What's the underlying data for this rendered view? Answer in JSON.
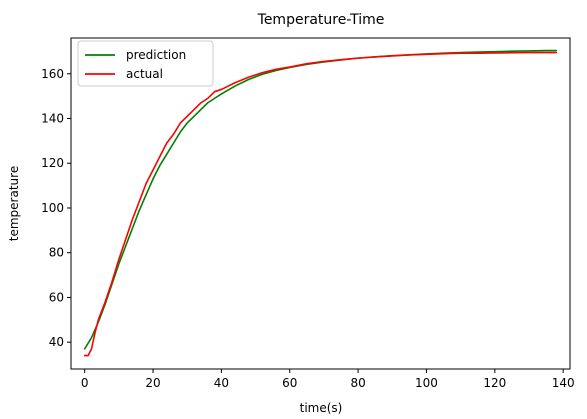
{
  "chart_data": {
    "type": "line",
    "title": "Temperature-Time",
    "xlabel": "time(s)",
    "ylabel": "temperature",
    "xlim": [
      -4,
      142
    ],
    "ylim": [
      28,
      176
    ],
    "xticks": [
      0,
      20,
      40,
      60,
      80,
      100,
      120,
      140
    ],
    "yticks": [
      40,
      60,
      80,
      100,
      120,
      140,
      160
    ],
    "grid": false,
    "legend": "top-left",
    "series": [
      {
        "name": "prediction",
        "color": "#008000",
        "x": [
          0,
          2,
          4,
          6,
          8,
          10,
          12,
          14,
          16,
          18,
          20,
          22,
          24,
          26,
          28,
          30,
          32,
          34,
          36,
          38,
          40,
          44,
          48,
          52,
          56,
          60,
          65,
          70,
          75,
          80,
          85,
          90,
          95,
          100,
          105,
          110,
          115,
          120,
          125,
          130,
          135,
          138
        ],
        "y": [
          37,
          42,
          49,
          57,
          66,
          75,
          83,
          91,
          99,
          106,
          113,
          119,
          124,
          129,
          134,
          138,
          141,
          144,
          147,
          149,
          151,
          154.5,
          157.5,
          159.8,
          161.5,
          162.8,
          164.2,
          165.3,
          166.2,
          167,
          167.6,
          168.1,
          168.5,
          168.9,
          169.2,
          169.5,
          169.7,
          169.9,
          170.1,
          170.2,
          170.4,
          170.4
        ]
      },
      {
        "name": "actual",
        "color": "#ff0000",
        "x": [
          0,
          1,
          2,
          3,
          4,
          6,
          8,
          10,
          12,
          14,
          16,
          18,
          20,
          22,
          24,
          26,
          28,
          30,
          32,
          34,
          36,
          38,
          40,
          44,
          48,
          52,
          56,
          60,
          65,
          70,
          75,
          80,
          85,
          90,
          95,
          100,
          105,
          110,
          115,
          120,
          125,
          130,
          135,
          138
        ],
        "y": [
          34,
          34,
          37,
          44,
          50,
          58,
          67,
          77,
          86,
          95,
          103,
          111,
          117,
          123,
          129,
          133,
          138,
          141,
          144,
          147,
          149,
          152,
          153,
          156,
          158.5,
          160.5,
          162,
          163,
          164.5,
          165.5,
          166.3,
          167,
          167.5,
          168,
          168.4,
          168.7,
          169,
          169.2,
          169.2,
          169.3,
          169.4,
          169.5,
          169.5,
          169.5
        ]
      }
    ]
  }
}
